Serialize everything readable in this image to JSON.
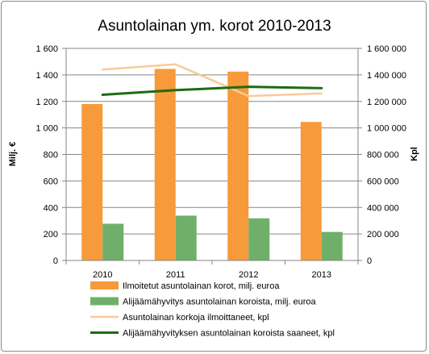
{
  "chart_data": {
    "type": "bar",
    "title": "Asuntolainan ym. korot 2010-2013",
    "categories": [
      "2010",
      "2011",
      "2012",
      "2013"
    ],
    "y_left": {
      "label": "Milj. €",
      "range": [
        0,
        1600
      ],
      "ticks": [
        0,
        200,
        400,
        600,
        800,
        1000,
        1200,
        1400,
        1600
      ],
      "tick_labels": [
        "0",
        "200",
        "400",
        "600",
        "800",
        "1 000",
        "1 200",
        "1 400",
        "1 600"
      ]
    },
    "y_right": {
      "label": "Kpl",
      "range": [
        0,
        1600000
      ],
      "ticks": [
        0,
        200000,
        400000,
        600000,
        800000,
        1000000,
        1200000,
        1400000,
        1600000
      ],
      "tick_labels": [
        "0",
        "200 000",
        "400 000",
        "600 000",
        "800 000",
        "1 000 000",
        "1 200 000",
        "1 400 000",
        "1 600 000"
      ]
    },
    "series": [
      {
        "name": "Ilmoitetut asuntolainan korot, milj. euroa",
        "kind": "bar",
        "axis": "left",
        "color": "#F79A3A",
        "values": [
          1180,
          1445,
          1425,
          1045
        ]
      },
      {
        "name": "Alijäämähyvitys asuntolainan koroista, milj. euroa",
        "kind": "bar",
        "axis": "left",
        "color": "#6FAF6A",
        "values": [
          277,
          338,
          318,
          215
        ]
      },
      {
        "name": "Asuntolainan korkoja ilmoittaneet, kpl",
        "kind": "line",
        "axis": "right",
        "color": "#FAC99A",
        "values": [
          1440000,
          1480000,
          1240000,
          1260000
        ]
      },
      {
        "name": "Alijäämähyvityksen asuntolainan koroista saaneet, kpl",
        "kind": "line",
        "axis": "right",
        "color": "#1D6B14",
        "values": [
          1250000,
          1285000,
          1310000,
          1300000
        ]
      }
    ],
    "legend_position": "bottom",
    "grid": true
  }
}
